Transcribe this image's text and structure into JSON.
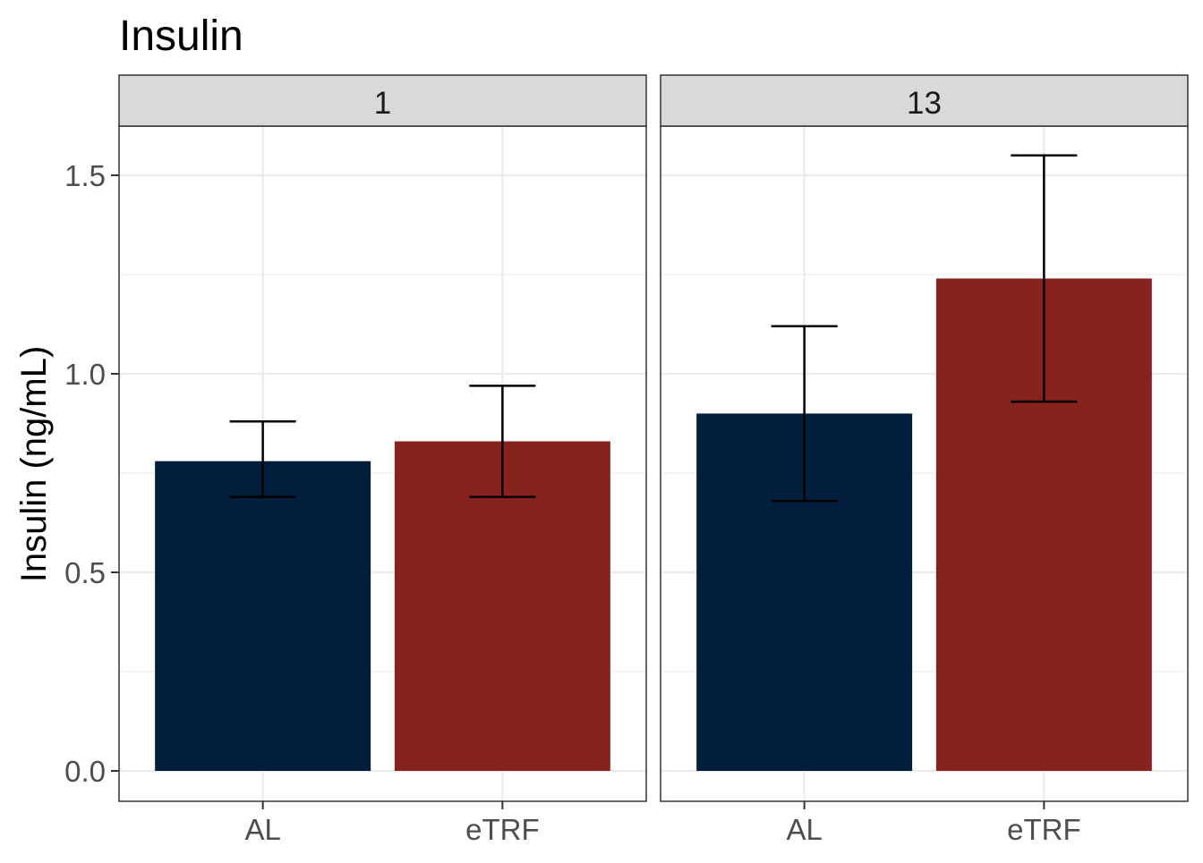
{
  "chart_data": {
    "type": "bar",
    "title": "Insulin",
    "ylabel": "Insulin (ng/mL)",
    "xlabel": "",
    "ylim": [
      -0.08,
      1.65
    ],
    "yticks": [
      0.0,
      0.5,
      1.0,
      1.5
    ],
    "ytick_labels": [
      "0.0",
      "0.5",
      "1.0",
      "1.5"
    ],
    "grid": true,
    "legend": "none",
    "categories": [
      "AL",
      "eTRF"
    ],
    "colors": {
      "AL": "#031E3D",
      "eTRF": "#86231F"
    },
    "facets": [
      {
        "label": "1",
        "bars": [
          {
            "category": "AL",
            "value": 0.78,
            "err_low": 0.69,
            "err_high": 0.88
          },
          {
            "category": "eTRF",
            "value": 0.83,
            "err_low": 0.69,
            "err_high": 0.97
          }
        ]
      },
      {
        "label": "13",
        "bars": [
          {
            "category": "AL",
            "value": 0.9,
            "err_low": 0.68,
            "err_high": 1.12
          },
          {
            "category": "eTRF",
            "value": 1.24,
            "err_low": 0.93,
            "err_high": 1.55
          }
        ]
      }
    ]
  }
}
